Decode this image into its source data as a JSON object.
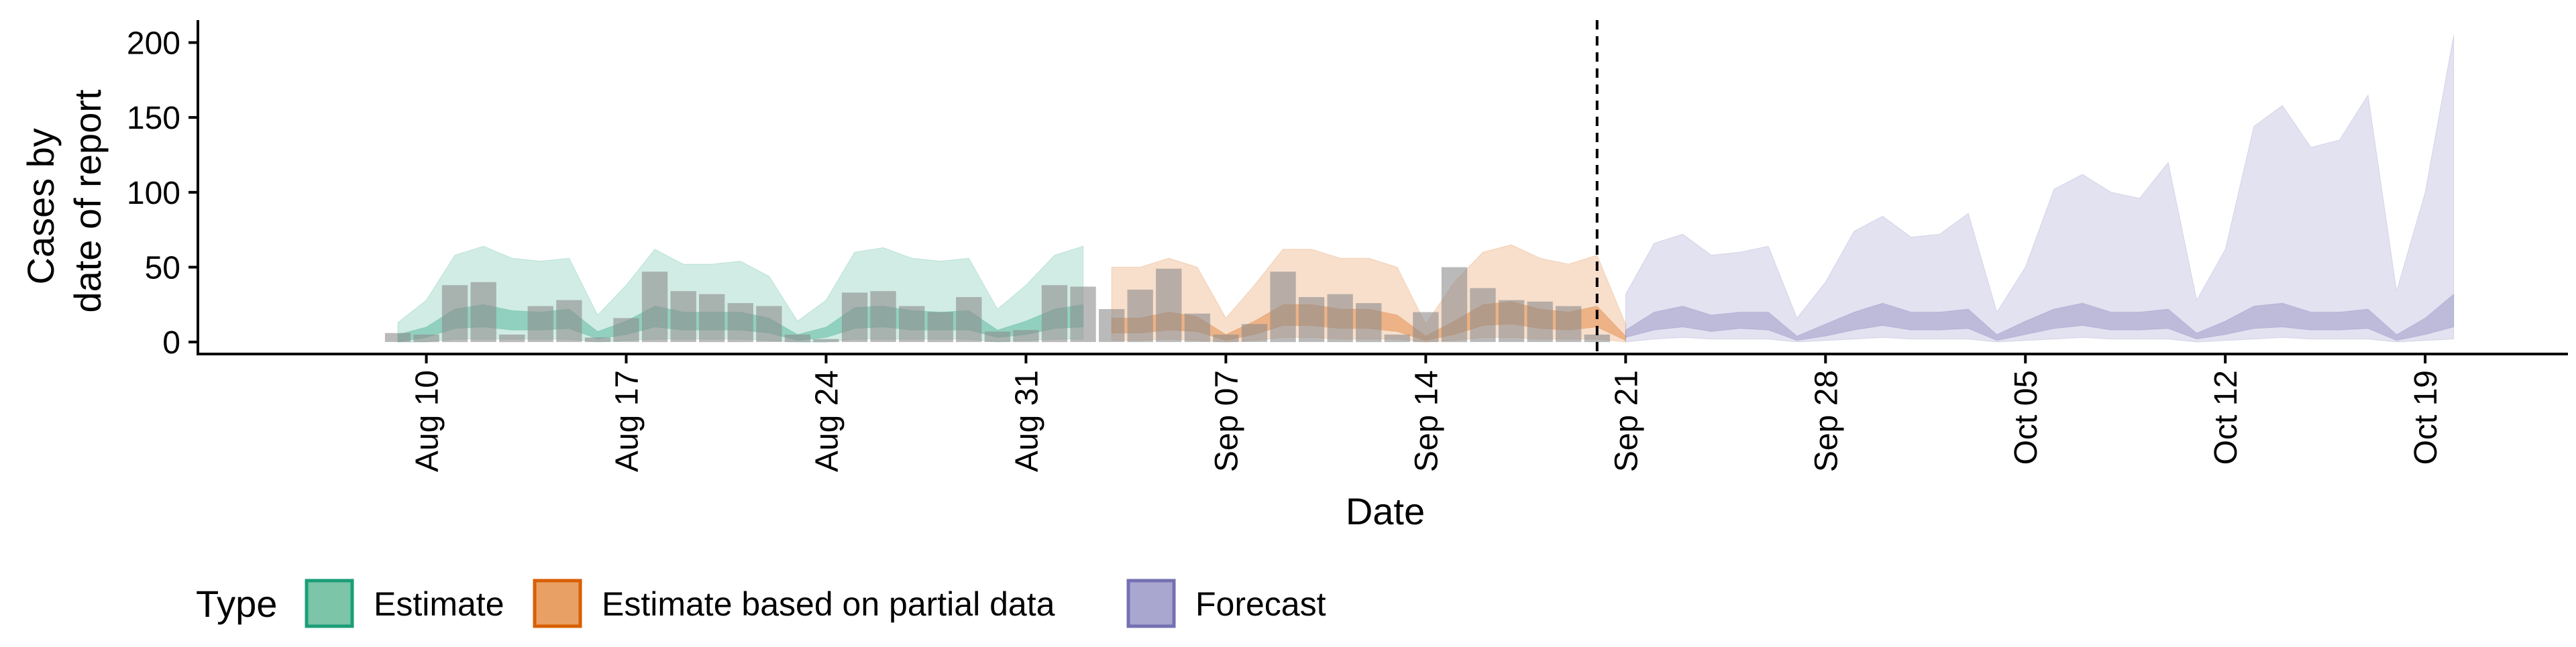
{
  "chart_data": {
    "type": "area",
    "title": "",
    "xlabel": "Date",
    "ylabel_lines": [
      "Cases by",
      "date of report"
    ],
    "ylim": [
      -8,
      215
    ],
    "yticks": [
      0,
      50,
      100,
      150,
      200
    ],
    "xlim": [
      "2020-08-02",
      "2020-10-24"
    ],
    "xticks": [
      "2020-08-10",
      "2020-08-17",
      "2020-08-24",
      "2020-08-31",
      "2020-09-07",
      "2020-09-14",
      "2020-09-21",
      "2020-09-28",
      "2020-10-05",
      "2020-10-12",
      "2020-10-19"
    ],
    "xtick_labels": [
      "Aug 10",
      "Aug 17",
      "Aug 24",
      "Aug 31",
      "Sep 07",
      "Sep 14",
      "Sep 21",
      "Sep 28",
      "Oct 05",
      "Oct 12",
      "Oct 19"
    ],
    "vline_date": "2020-09-20",
    "grid": false,
    "legend": {
      "title": "Type",
      "position": "bottom",
      "items": [
        {
          "label": "Estimate",
          "fill": "#7cc5a8",
          "stroke": "#1b9e77"
        },
        {
          "label": "Estimate based on partial data",
          "fill": "#e9a064",
          "stroke": "#d95f02"
        },
        {
          "label": "Forecast",
          "fill": "#a9a7cf",
          "stroke": "#7570b3"
        }
      ]
    },
    "colors": {
      "estimate": "#1b9e77",
      "partial": "#d95f02",
      "forecast": "#7570b3",
      "bars": "#8c8c8c",
      "vline": "#000000"
    },
    "bars": {
      "start": "2020-08-09",
      "values": [
        6,
        5,
        38,
        40,
        5,
        24,
        28,
        3,
        16,
        47,
        34,
        32,
        26,
        24,
        5,
        2,
        33,
        34,
        24,
        20,
        30,
        7,
        8,
        38,
        37,
        22,
        35,
        49,
        19,
        5,
        12,
        47,
        30,
        32,
        26,
        5,
        20,
        50,
        36,
        28,
        27,
        24,
        5
      ]
    },
    "series": [
      {
        "name": "Estimate",
        "type_key": "estimate",
        "start": "2020-08-09",
        "upper90": [
          13,
          28,
          58,
          64,
          56,
          54,
          56,
          18,
          38,
          62,
          52,
          52,
          54,
          44,
          14,
          28,
          60,
          63,
          56,
          54,
          56,
          22,
          38,
          58,
          64
        ],
        "upper50": [
          5,
          10,
          22,
          25,
          21,
          20,
          22,
          7,
          14,
          24,
          20,
          20,
          20,
          16,
          5,
          10,
          23,
          24,
          21,
          20,
          21,
          8,
          14,
          22,
          25
        ],
        "median": [
          2,
          6,
          15,
          17,
          14,
          13,
          14,
          4,
          9,
          16,
          13,
          13,
          13,
          11,
          3,
          6,
          15,
          16,
          14,
          13,
          14,
          5,
          9,
          15,
          16
        ],
        "lower50": [
          0,
          3,
          9,
          10,
          8,
          8,
          9,
          2,
          5,
          10,
          8,
          8,
          8,
          6,
          1,
          3,
          9,
          10,
          8,
          8,
          8,
          3,
          5,
          9,
          10
        ],
        "lower90": [
          0,
          0,
          2,
          2,
          2,
          2,
          2,
          0,
          1,
          2,
          2,
          2,
          2,
          1,
          0,
          0,
          2,
          2,
          2,
          2,
          2,
          0,
          1,
          2,
          2
        ]
      },
      {
        "name": "Estimate based on partial data",
        "type_key": "partial",
        "start": "2020-09-03",
        "upper90": [
          50,
          50,
          56,
          50,
          16,
          38,
          62,
          62,
          56,
          56,
          50,
          12,
          40,
          60,
          65,
          56,
          52,
          58,
          12
        ],
        "upper50": [
          16,
          16,
          20,
          17,
          5,
          14,
          25,
          25,
          22,
          22,
          18,
          4,
          14,
          25,
          27,
          22,
          20,
          24,
          4
        ],
        "median": [
          10,
          10,
          13,
          11,
          3,
          9,
          17,
          17,
          15,
          14,
          12,
          2,
          9,
          17,
          18,
          15,
          13,
          16,
          2
        ],
        "lower50": [
          6,
          6,
          8,
          7,
          1,
          5,
          11,
          11,
          9,
          9,
          7,
          1,
          5,
          11,
          12,
          9,
          8,
          10,
          1
        ],
        "lower90": [
          1,
          1,
          2,
          1,
          0,
          1,
          3,
          3,
          2,
          2,
          2,
          0,
          1,
          3,
          3,
          2,
          2,
          2,
          0
        ]
      },
      {
        "name": "Forecast",
        "type_key": "forecast",
        "start": "2020-09-21",
        "upper90": [
          32,
          66,
          72,
          58,
          60,
          64,
          16,
          40,
          74,
          84,
          70,
          72,
          86,
          20,
          50,
          102,
          112,
          100,
          96,
          120,
          28,
          62,
          144,
          158,
          130,
          135,
          165,
          34,
          100,
          205
        ],
        "upper50": [
          8,
          20,
          24,
          18,
          20,
          20,
          4,
          12,
          20,
          26,
          20,
          20,
          22,
          5,
          14,
          22,
          26,
          20,
          20,
          22,
          6,
          14,
          24,
          26,
          20,
          20,
          22,
          5,
          16,
          32
        ],
        "median": [
          6,
          14,
          18,
          12,
          15,
          14,
          3,
          8,
          14,
          18,
          14,
          14,
          16,
          3,
          10,
          16,
          18,
          14,
          14,
          16,
          4,
          10,
          16,
          18,
          14,
          14,
          15,
          3,
          10,
          20
        ],
        "lower50": [
          3,
          8,
          10,
          7,
          9,
          8,
          1,
          4,
          8,
          11,
          8,
          8,
          9,
          1,
          5,
          9,
          11,
          8,
          8,
          9,
          2,
          5,
          9,
          10,
          8,
          8,
          9,
          1,
          5,
          10
        ],
        "lower90": [
          0,
          2,
          3,
          2,
          2,
          2,
          0,
          1,
          2,
          3,
          2,
          2,
          2,
          0,
          1,
          2,
          3,
          2,
          2,
          2,
          0,
          1,
          2,
          3,
          2,
          2,
          2,
          0,
          1,
          2
        ]
      }
    ]
  }
}
